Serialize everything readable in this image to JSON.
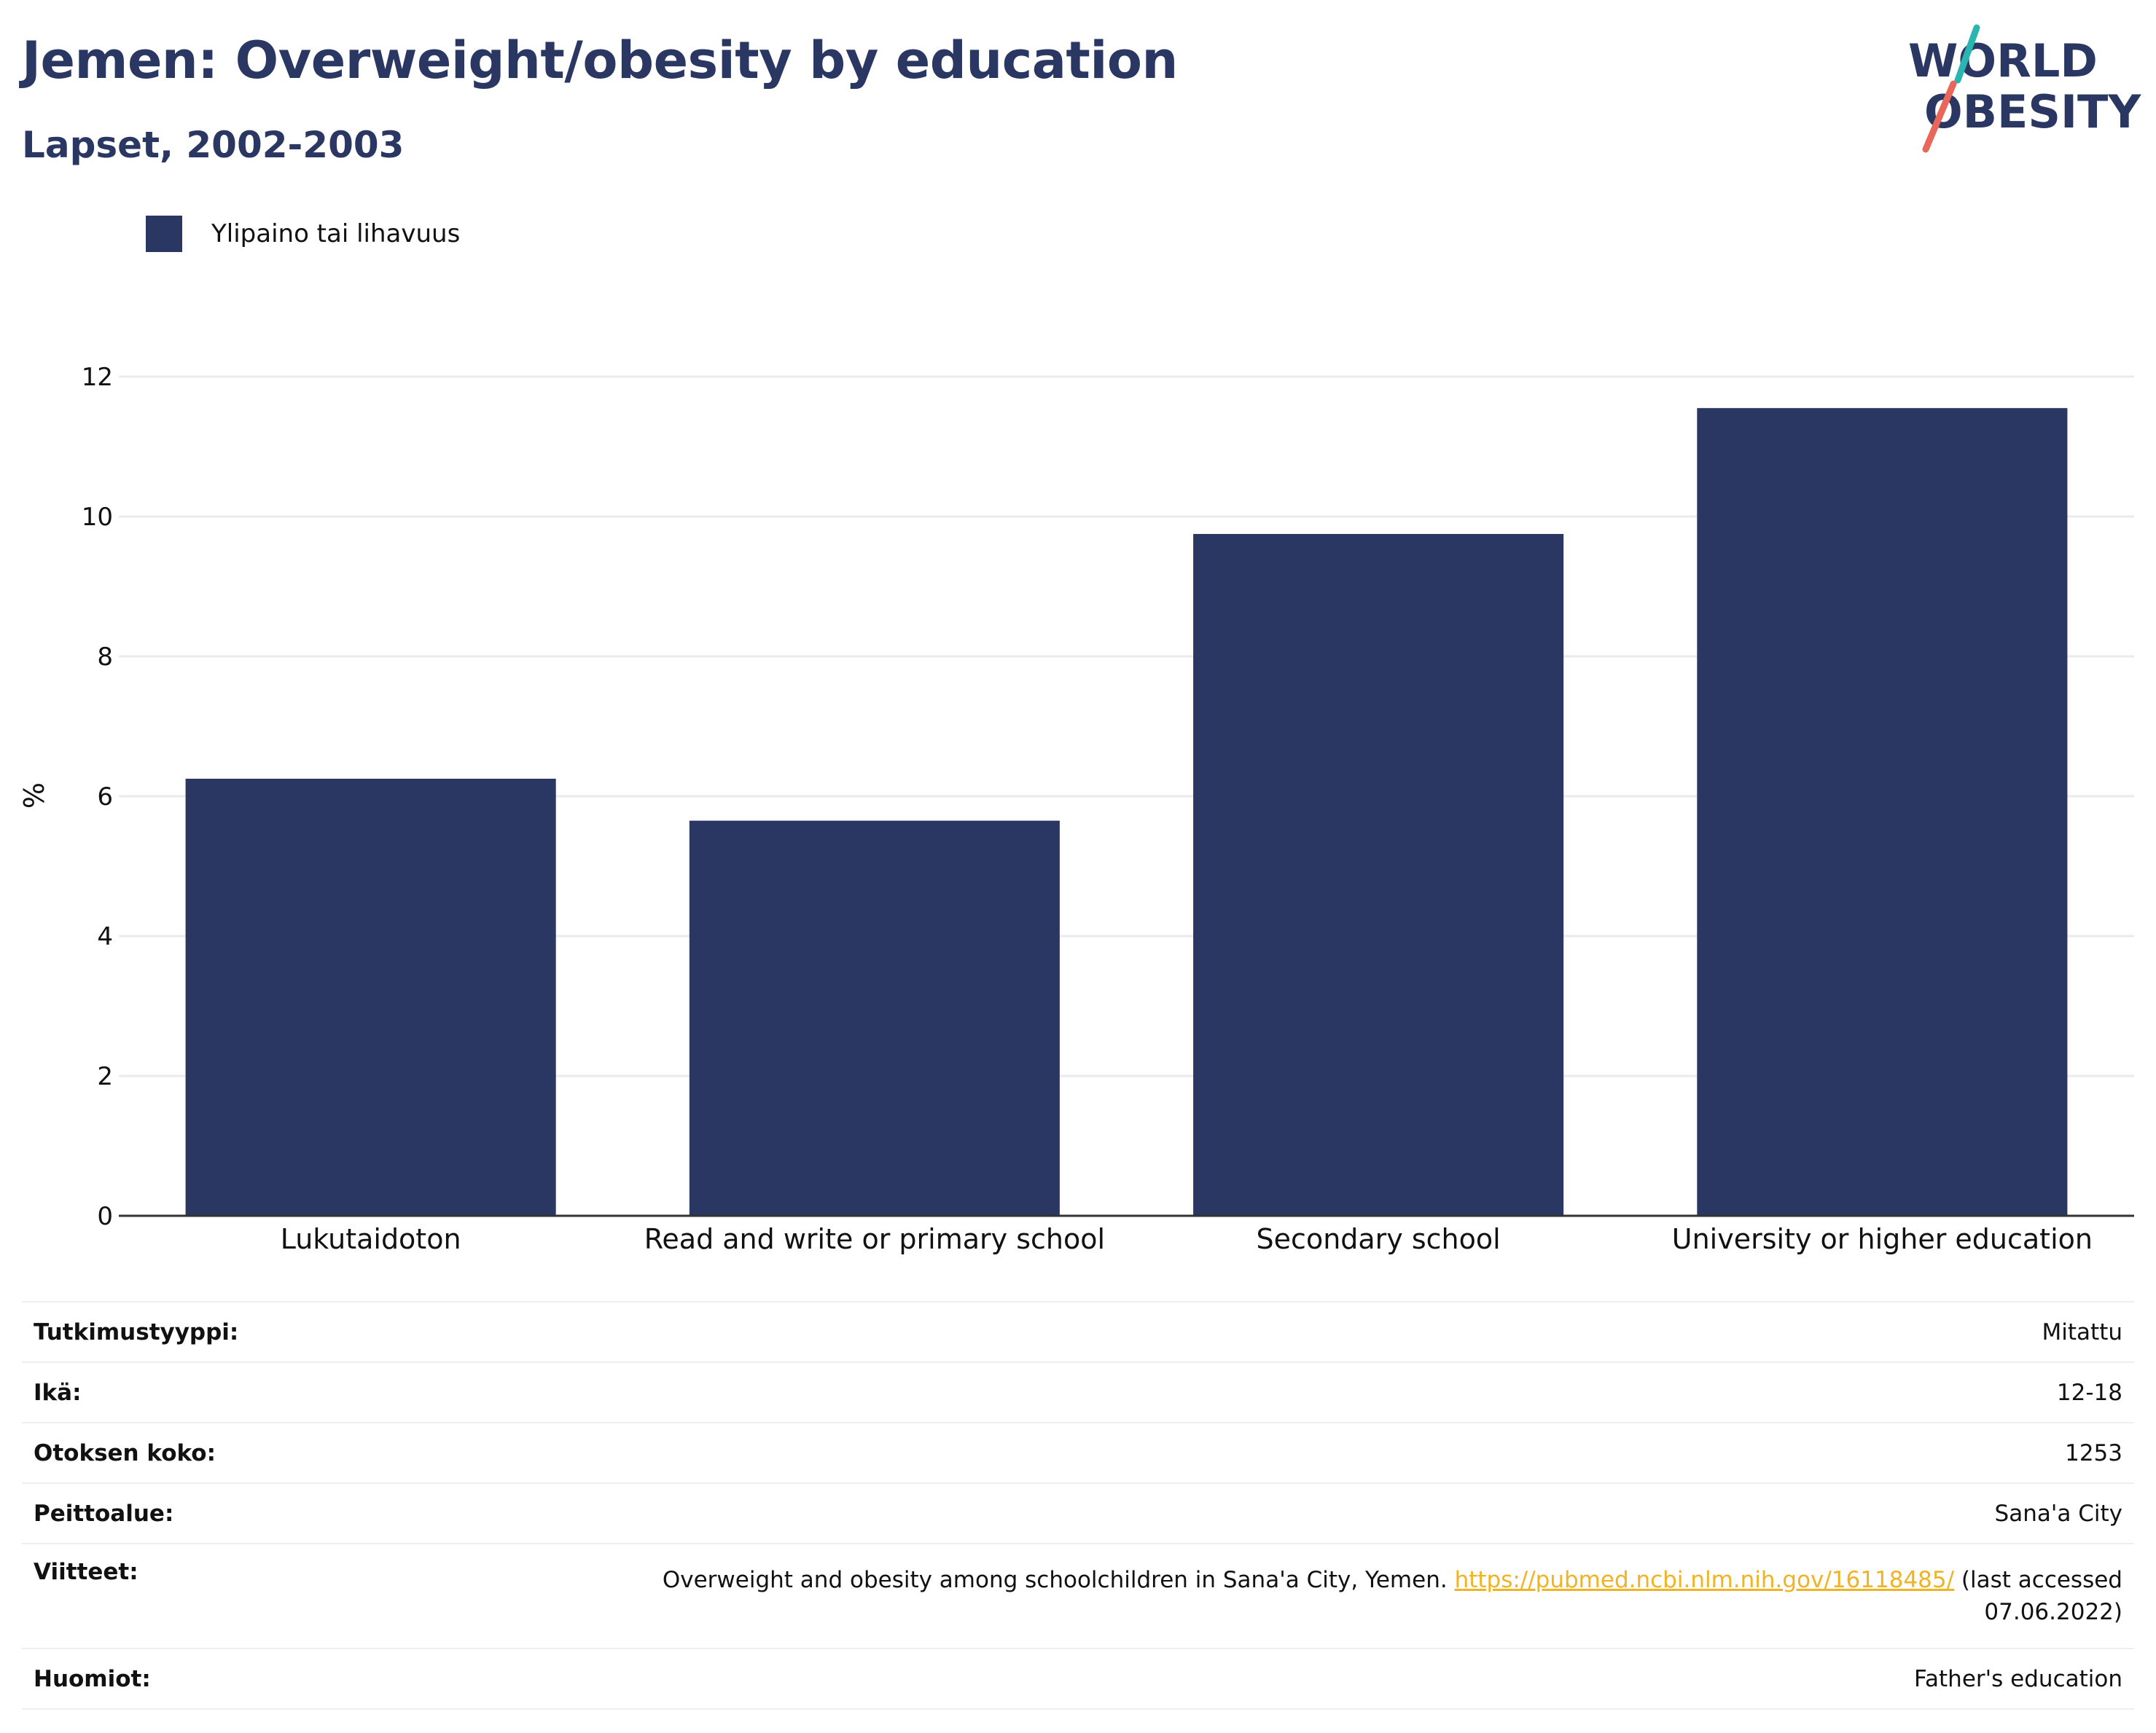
{
  "header": {
    "title": "Jemen: Overweight/obesity by education",
    "subtitle": "Lapset, 2002-2003"
  },
  "logo": {
    "line1": "WORLD",
    "line2": "OBESITY",
    "colors": {
      "text": "#2b3763",
      "teal": "#2bb5b0",
      "coral": "#e8665a"
    }
  },
  "chart_data": {
    "type": "bar",
    "categories": [
      "Lukutaidoton",
      "Read and write or primary school",
      "Secondary school",
      "University or higher education"
    ],
    "series": [
      {
        "name": "Ylipaino tai lihavuus",
        "values": [
          6.25,
          5.65,
          9.75,
          11.55
        ],
        "color": "#2b3763"
      }
    ],
    "ylabel": "%",
    "ylim": [
      0,
      12
    ],
    "yticks": [
      "0",
      "2",
      "4",
      "6",
      "8",
      "10",
      "12"
    ],
    "grid": true,
    "legend": "top-left"
  },
  "info": {
    "rows": [
      {
        "label": "Tutkimustyyppi:",
        "value": "Mitattu"
      },
      {
        "label": "Ikä:",
        "value": "12-18"
      },
      {
        "label": "Otoksen koko:",
        "value": "1253"
      },
      {
        "label": "Peittoalue:",
        "value": "Sana'a City"
      }
    ],
    "references": {
      "label": "Viitteet:",
      "text_before": "Overweight and obesity among schoolchildren in Sana'a City, Yemen. ",
      "link": "https://pubmed.ncbi.nlm.nih.gov/16118485/",
      "text_after": " (last accessed",
      "text_date": "07.06.2022)"
    },
    "notes": {
      "label": "Huomiot:",
      "value": "Father's education"
    }
  }
}
